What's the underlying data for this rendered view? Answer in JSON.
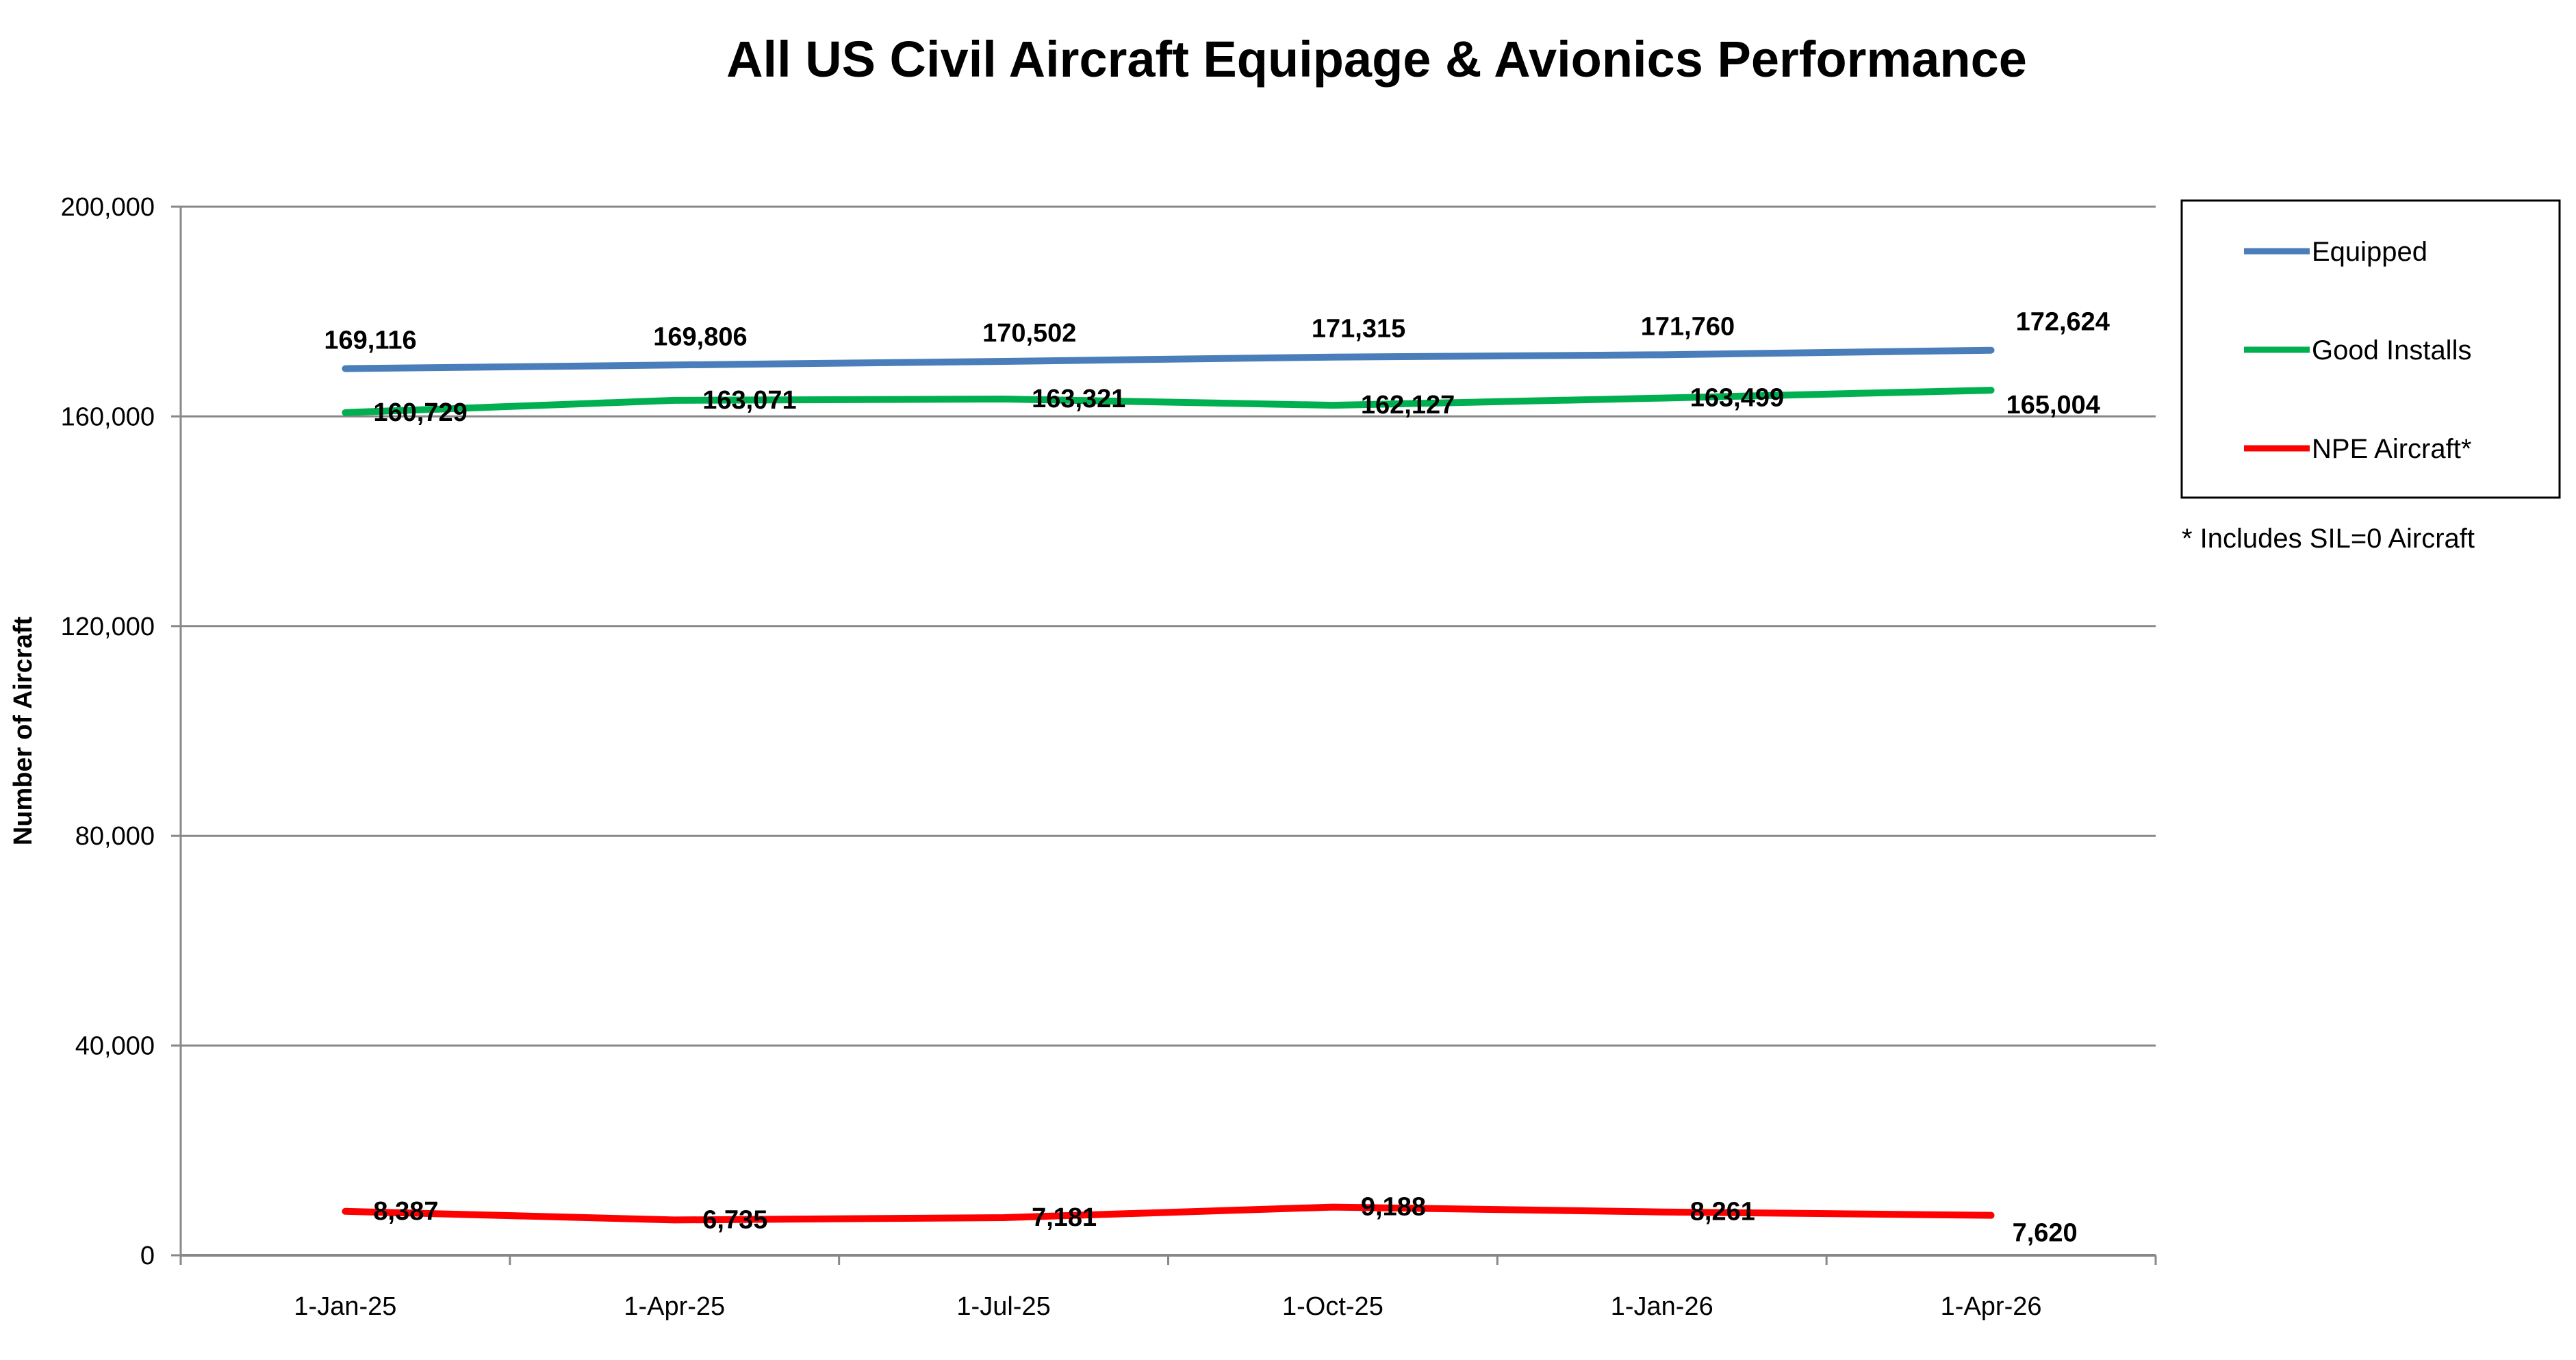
{
  "chart_data": {
    "type": "line",
    "title": "All US Civil Aircraft Equipage & Avionics Performance",
    "xlabel": "",
    "ylabel": "Number of Aircraft",
    "categories": [
      "1-Jan-25",
      "1-Apr-25",
      "1-Jul-25",
      "1-Oct-25",
      "1-Jan-26",
      "1-Apr-26"
    ],
    "ylim": [
      0,
      200000
    ],
    "yticks": [
      0,
      40000,
      80000,
      120000,
      160000,
      200000
    ],
    "ytick_labels": [
      "0",
      "40,000",
      "80,000",
      "120,000",
      "160,000",
      "200,000"
    ],
    "grid": true,
    "legend_position": "right",
    "series": [
      {
        "name": "Equipped",
        "color": "#4A7EBB",
        "values": [
          169116,
          169806,
          170502,
          171315,
          171760,
          172624
        ],
        "labels": [
          "169,116",
          "169,806",
          "170,502",
          "171,315",
          "171,760",
          "172,624"
        ]
      },
      {
        "name": "Good Installs",
        "color": "#00B050",
        "values": [
          160729,
          163071,
          163321,
          162127,
          163499,
          165004
        ],
        "labels": [
          "160,729",
          "163,071",
          "163,321",
          "162,127",
          "163,499",
          "165,004"
        ]
      },
      {
        "name": "NPE Aircraft*",
        "color": "#FF0000",
        "values": [
          8387,
          6735,
          7181,
          9188,
          8261,
          7620
        ],
        "labels": [
          "8,387",
          "6,735",
          "7,181",
          "9,188",
          "8,261",
          "7,620"
        ]
      }
    ],
    "annotation": "* Includes SIL=0 Aircraft"
  }
}
